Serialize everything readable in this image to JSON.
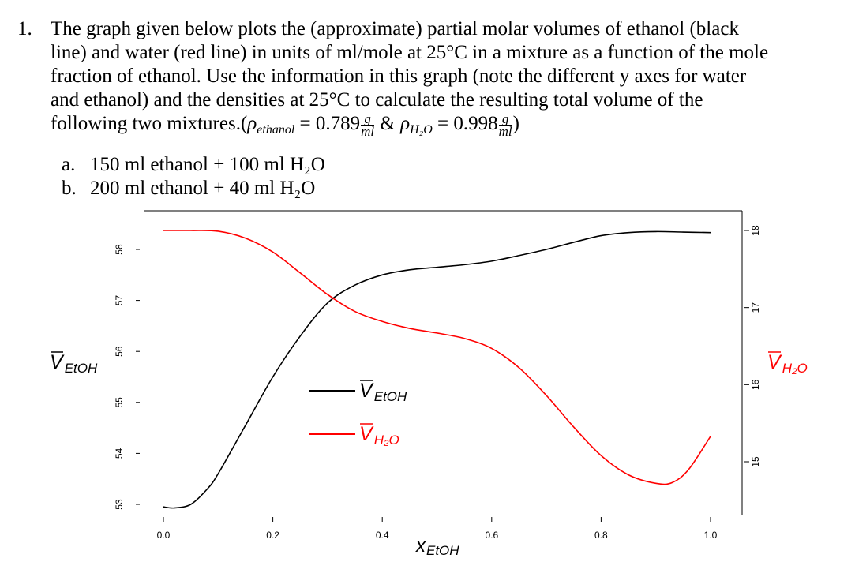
{
  "question": {
    "number": "1.",
    "lines": [
      "The graph given below plots the (approximate) partial molar volumes of ethanol (black",
      "line) and water (red line) in units of ml/mole at 25°C in a mixture as a function of the mole",
      "fraction of ethanol.  Use the information in this graph (note the different y axes for water",
      "and ethanol) and the densities at 25°C to calculate the resulting total volume of the"
    ],
    "last_line_prefix": "following two mixtures.(",
    "rho_symbol": "ρ",
    "rho_ethanol_sub": "ethanol",
    "eq1": "= 0.789",
    "amp": "&",
    "rho_water_sub": "H₂O",
    "eq2": "= 0.998",
    "unit_num": "g",
    "unit_den": "ml",
    "close": ")",
    "parts": [
      {
        "label": "a.",
        "text": "150 ml ethanol + 100 ml H₂O"
      },
      {
        "label": "b.",
        "text": "200 ml ethanol + 40 ml H₂O"
      }
    ]
  },
  "chart_data": {
    "type": "line",
    "xlabel": "X_EtOH",
    "xlim": [
      0.0,
      1.0
    ],
    "x_ticks": [
      "0.0",
      "0.2",
      "0.4",
      "0.6",
      "0.8",
      "1.0"
    ],
    "left_axis": {
      "label": "V̄_EtOH",
      "ticks": [
        "53",
        "54",
        "55",
        "56",
        "57",
        "58"
      ],
      "range": [
        52.8,
        58.5
      ],
      "color": "#000000"
    },
    "right_axis": {
      "label": "V̄_H₂O",
      "ticks": [
        "15",
        "16",
        "17",
        "18"
      ],
      "range": [
        14.8,
        18.2
      ],
      "color": "#ff0000"
    },
    "legend": {
      "placement": "center",
      "entries": [
        {
          "name": "V̄_EtOH",
          "color": "#000000"
        },
        {
          "name": "V̄_H₂O",
          "color": "#ff0000"
        }
      ]
    },
    "series": [
      {
        "name": "V̄_EtOH",
        "axis": "left",
        "color": "#000000",
        "x": [
          0.0,
          0.02,
          0.05,
          0.08,
          0.1,
          0.15,
          0.2,
          0.25,
          0.3,
          0.35,
          0.4,
          0.45,
          0.5,
          0.55,
          0.6,
          0.65,
          0.7,
          0.75,
          0.8,
          0.85,
          0.9,
          0.95,
          1.0
        ],
        "values": [
          52.95,
          52.93,
          53.0,
          53.3,
          53.6,
          54.55,
          55.5,
          56.3,
          56.95,
          57.3,
          57.5,
          57.6,
          57.65,
          57.7,
          57.77,
          57.88,
          58.0,
          58.14,
          58.27,
          58.33,
          58.35,
          58.34,
          58.33
        ]
      },
      {
        "name": "V̄_H₂O",
        "axis": "right",
        "color": "#ff0000",
        "x": [
          0.0,
          0.05,
          0.1,
          0.15,
          0.2,
          0.25,
          0.3,
          0.35,
          0.4,
          0.45,
          0.5,
          0.55,
          0.6,
          0.65,
          0.7,
          0.75,
          0.8,
          0.85,
          0.9,
          0.93,
          0.96,
          1.0
        ],
        "values": [
          18.0,
          18.0,
          17.99,
          17.9,
          17.72,
          17.45,
          17.17,
          16.95,
          16.82,
          16.73,
          16.67,
          16.6,
          16.47,
          16.22,
          15.86,
          15.45,
          15.08,
          14.83,
          14.72,
          14.73,
          14.9,
          15.33
        ]
      }
    ]
  }
}
